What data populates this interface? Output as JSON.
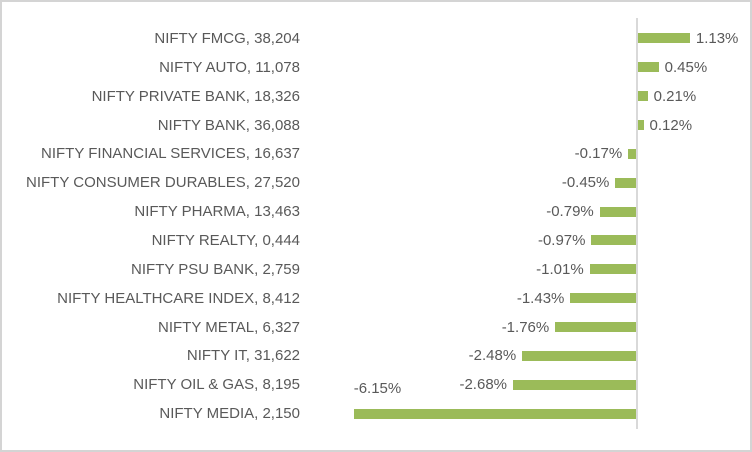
{
  "chart_data": {
    "type": "bar",
    "orientation": "horizontal",
    "title": "",
    "xlabel": "",
    "ylabel": "",
    "value_unit": "%",
    "legend": false,
    "grid": false,
    "bar_color": "#9bbb59",
    "axis_line_color": "#d9d9d9",
    "label_text_color": "#595959",
    "frame_border_color": "#d4d4d4",
    "xlim": [
      -6.5,
      2.5
    ],
    "rows": [
      {
        "label": "NIFTY FMCG, 38,204",
        "pct_label": "1.13%",
        "value": 1.13
      },
      {
        "label": "NIFTY AUTO, 11,078",
        "pct_label": "0.45%",
        "value": 0.45
      },
      {
        "label": "NIFTY PRIVATE BANK, 18,326",
        "pct_label": "0.21%",
        "value": 0.21
      },
      {
        "label": "NIFTY BANK, 36,088",
        "pct_label": "0.12%",
        "value": 0.12
      },
      {
        "label": "NIFTY FINANCIAL SERVICES, 16,637",
        "pct_label": "-0.17%",
        "value": -0.17
      },
      {
        "label": "NIFTY CONSUMER DURABLES, 27,520",
        "pct_label": "-0.45%",
        "value": -0.45
      },
      {
        "label": "NIFTY PHARMA, 13,463",
        "pct_label": "-0.79%",
        "value": -0.79
      },
      {
        "label": "NIFTY REALTY, 0,444",
        "pct_label": "-0.97%",
        "value": -0.97
      },
      {
        "label": "NIFTY PSU BANK, 2,759",
        "pct_label": "-1.01%",
        "value": -1.01
      },
      {
        "label": "NIFTY HEALTHCARE INDEX, 8,412",
        "pct_label": "-1.43%",
        "value": -1.43
      },
      {
        "label": "NIFTY METAL, 6,327",
        "pct_label": "-1.76%",
        "value": -1.76
      },
      {
        "label": "NIFTY IT, 31,622",
        "pct_label": "-2.48%",
        "value": -2.48
      },
      {
        "label": "NIFTY OIL & GAS, 8,195",
        "pct_label": "-2.68%",
        "value": -2.68
      },
      {
        "label": "NIFTY MEDIA, 2,150",
        "pct_label": "-6.15%",
        "value": -6.15,
        "pct_label_position": "above-start"
      }
    ]
  }
}
